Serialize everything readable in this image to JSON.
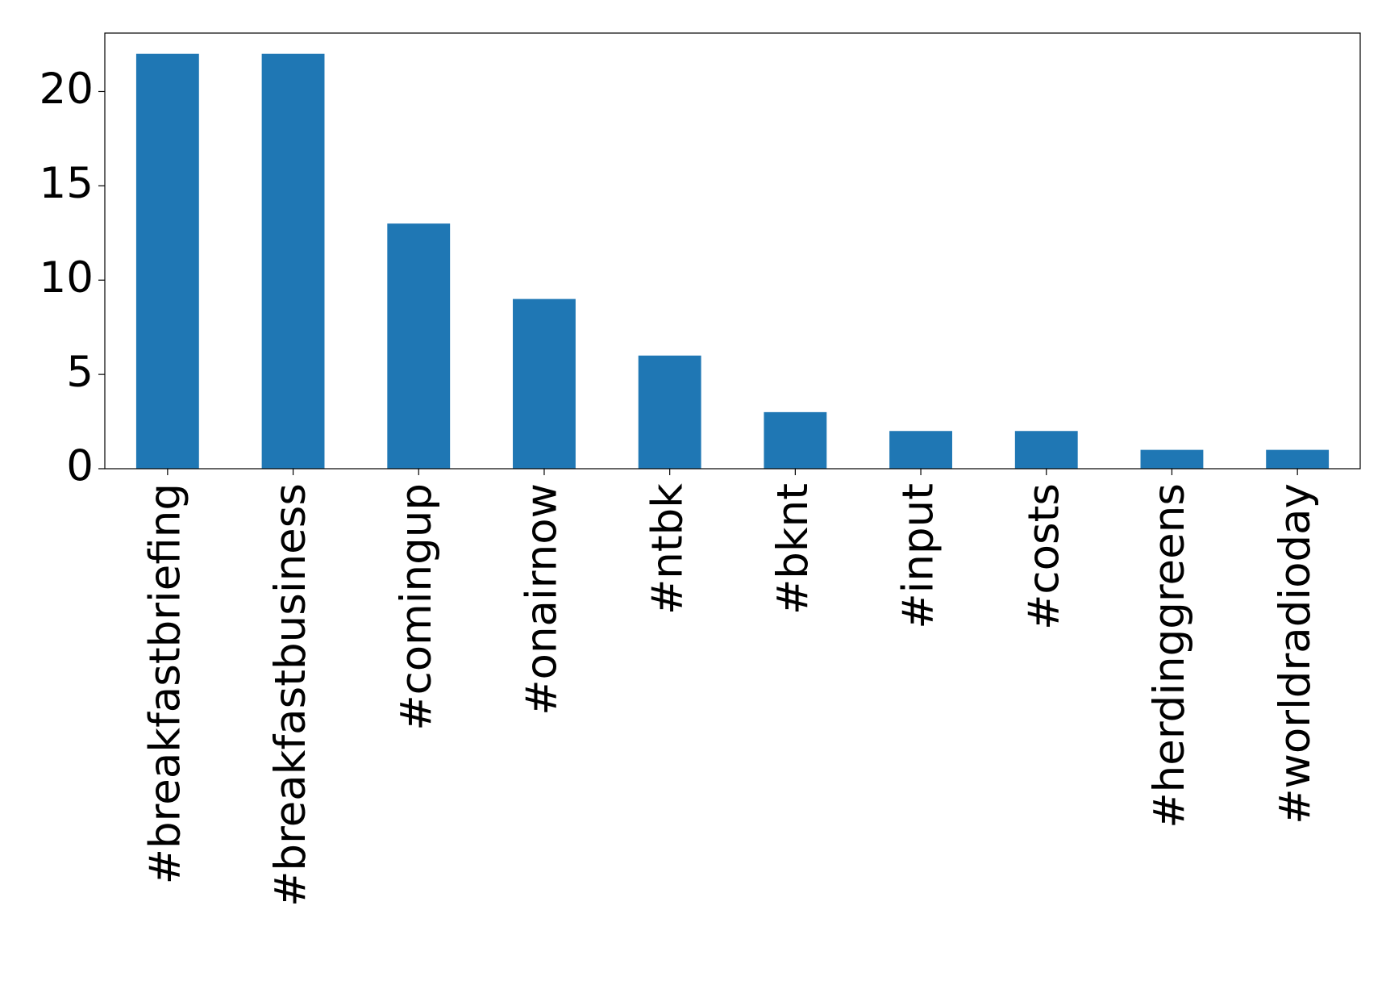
{
  "chart_data": {
    "type": "bar",
    "categories": [
      "#breakfastbriefing",
      "#breakfastbusiness",
      "#comingup",
      "#onairnow",
      "#ntbk",
      "#bknt",
      "#input",
      "#costs",
      "#herdinggreens",
      "#worldradioday"
    ],
    "values": [
      22,
      22,
      13,
      9,
      6,
      3,
      2,
      2,
      1,
      1
    ],
    "color": "#1f77b4",
    "ylim": [
      0,
      23.1
    ],
    "yticks": [
      0,
      5,
      10,
      15,
      20
    ],
    "grid": false
  }
}
